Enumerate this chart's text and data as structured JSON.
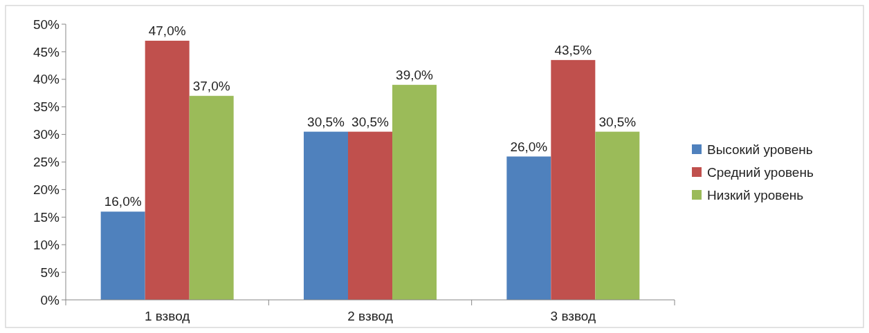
{
  "chart_data": {
    "type": "bar",
    "categories": [
      "1 взвод",
      "2 взвод",
      "3 взвод"
    ],
    "series": [
      {
        "name": "Высокий уровень",
        "color": "#4f81bd",
        "values": [
          16.0,
          30.5,
          26.0
        ],
        "value_labels": [
          "16,0%",
          "30,5%",
          "26,0%"
        ]
      },
      {
        "name": "Средний уровень",
        "color": "#c0504d",
        "values": [
          47.0,
          30.5,
          43.5
        ],
        "value_labels": [
          "47,0%",
          "30,5%",
          "43,5%"
        ]
      },
      {
        "name": "Низкий уровень",
        "color": "#9bbb59",
        "values": [
          37.0,
          39.0,
          30.5
        ],
        "value_labels": [
          "37,0%",
          "39,0%",
          "30,5%"
        ]
      }
    ],
    "ylim": [
      0,
      50
    ],
    "yticks": [
      {
        "value": 0,
        "label": "0%"
      },
      {
        "value": 5,
        "label": "5%"
      },
      {
        "value": 10,
        "label": "10%"
      },
      {
        "value": 15,
        "label": "15%"
      },
      {
        "value": 20,
        "label": "20%"
      },
      {
        "value": 25,
        "label": "25%"
      },
      {
        "value": 30,
        "label": "30%"
      },
      {
        "value": 35,
        "label": "35%"
      },
      {
        "value": 40,
        "label": "40%"
      },
      {
        "value": 45,
        "label": "45%"
      },
      {
        "value": 50,
        "label": "50%"
      }
    ],
    "legend": "right"
  }
}
